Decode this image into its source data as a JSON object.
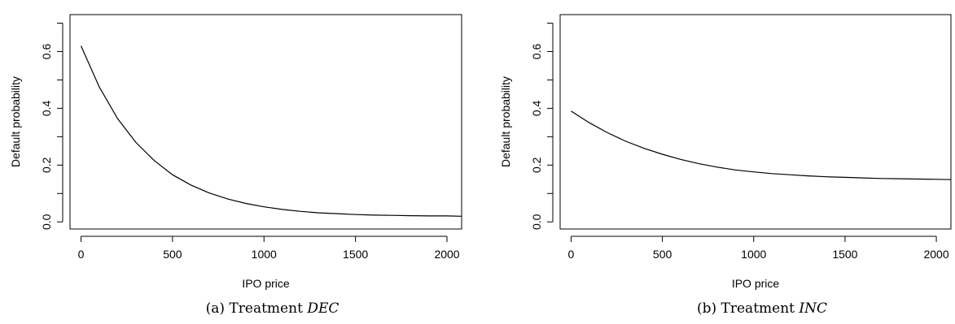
{
  "chart_data": [
    {
      "type": "line",
      "xlabel": "IPO price",
      "ylabel": "Default probability",
      "caption_prefix": "(a) Treatment ",
      "caption_treatment": "DEC",
      "xlim": [
        -60,
        2080
      ],
      "ylim": [
        -0.025,
        0.73
      ],
      "x_ticks": [
        0,
        500,
        1000,
        1500,
        2000
      ],
      "x_tick_labels": [
        "0",
        "500",
        "1000",
        "1500",
        "2000"
      ],
      "y_ticks": [
        0.0,
        0.1,
        0.2,
        0.3,
        0.4,
        0.5,
        0.6,
        0.7
      ],
      "y_tick_labels": [
        "0.0",
        "",
        "0.2",
        "",
        "0.4",
        "",
        "0.6",
        ""
      ],
      "series": [
        {
          "x": [
            0,
            100,
            200,
            300,
            400,
            500,
            600,
            700,
            800,
            900,
            1000,
            1100,
            1200,
            1300,
            1400,
            1500,
            1600,
            1700,
            1800,
            1900,
            2000,
            2080
          ],
          "values": [
            0.62,
            0.475,
            0.364,
            0.28,
            0.216,
            0.166,
            0.13,
            0.102,
            0.081,
            0.065,
            0.053,
            0.044,
            0.037,
            0.032,
            0.029,
            0.026,
            0.024,
            0.023,
            0.022,
            0.021,
            0.021,
            0.02
          ]
        }
      ]
    },
    {
      "type": "line",
      "xlabel": "IPO price",
      "ylabel": "Default probability",
      "caption_prefix": "(b) Treatment ",
      "caption_treatment": "INC",
      "xlim": [
        -60,
        2080
      ],
      "ylim": [
        -0.025,
        0.73
      ],
      "x_ticks": [
        0,
        500,
        1000,
        1500,
        2000
      ],
      "x_tick_labels": [
        "0",
        "500",
        "1000",
        "1500",
        "2000"
      ],
      "y_ticks": [
        0.0,
        0.1,
        0.2,
        0.3,
        0.4,
        0.5,
        0.6,
        0.7
      ],
      "y_tick_labels": [
        "0.0",
        "",
        "0.2",
        "",
        "0.4",
        "",
        "0.6",
        ""
      ],
      "series": [
        {
          "x": [
            0,
            100,
            200,
            300,
            400,
            500,
            600,
            700,
            800,
            900,
            1000,
            1100,
            1200,
            1300,
            1400,
            1500,
            1600,
            1700,
            1800,
            1900,
            2000,
            2080
          ],
          "values": [
            0.39,
            0.349,
            0.314,
            0.284,
            0.259,
            0.238,
            0.22,
            0.205,
            0.193,
            0.183,
            0.176,
            0.17,
            0.166,
            0.162,
            0.159,
            0.157,
            0.155,
            0.153,
            0.152,
            0.151,
            0.15,
            0.149
          ]
        }
      ]
    }
  ]
}
